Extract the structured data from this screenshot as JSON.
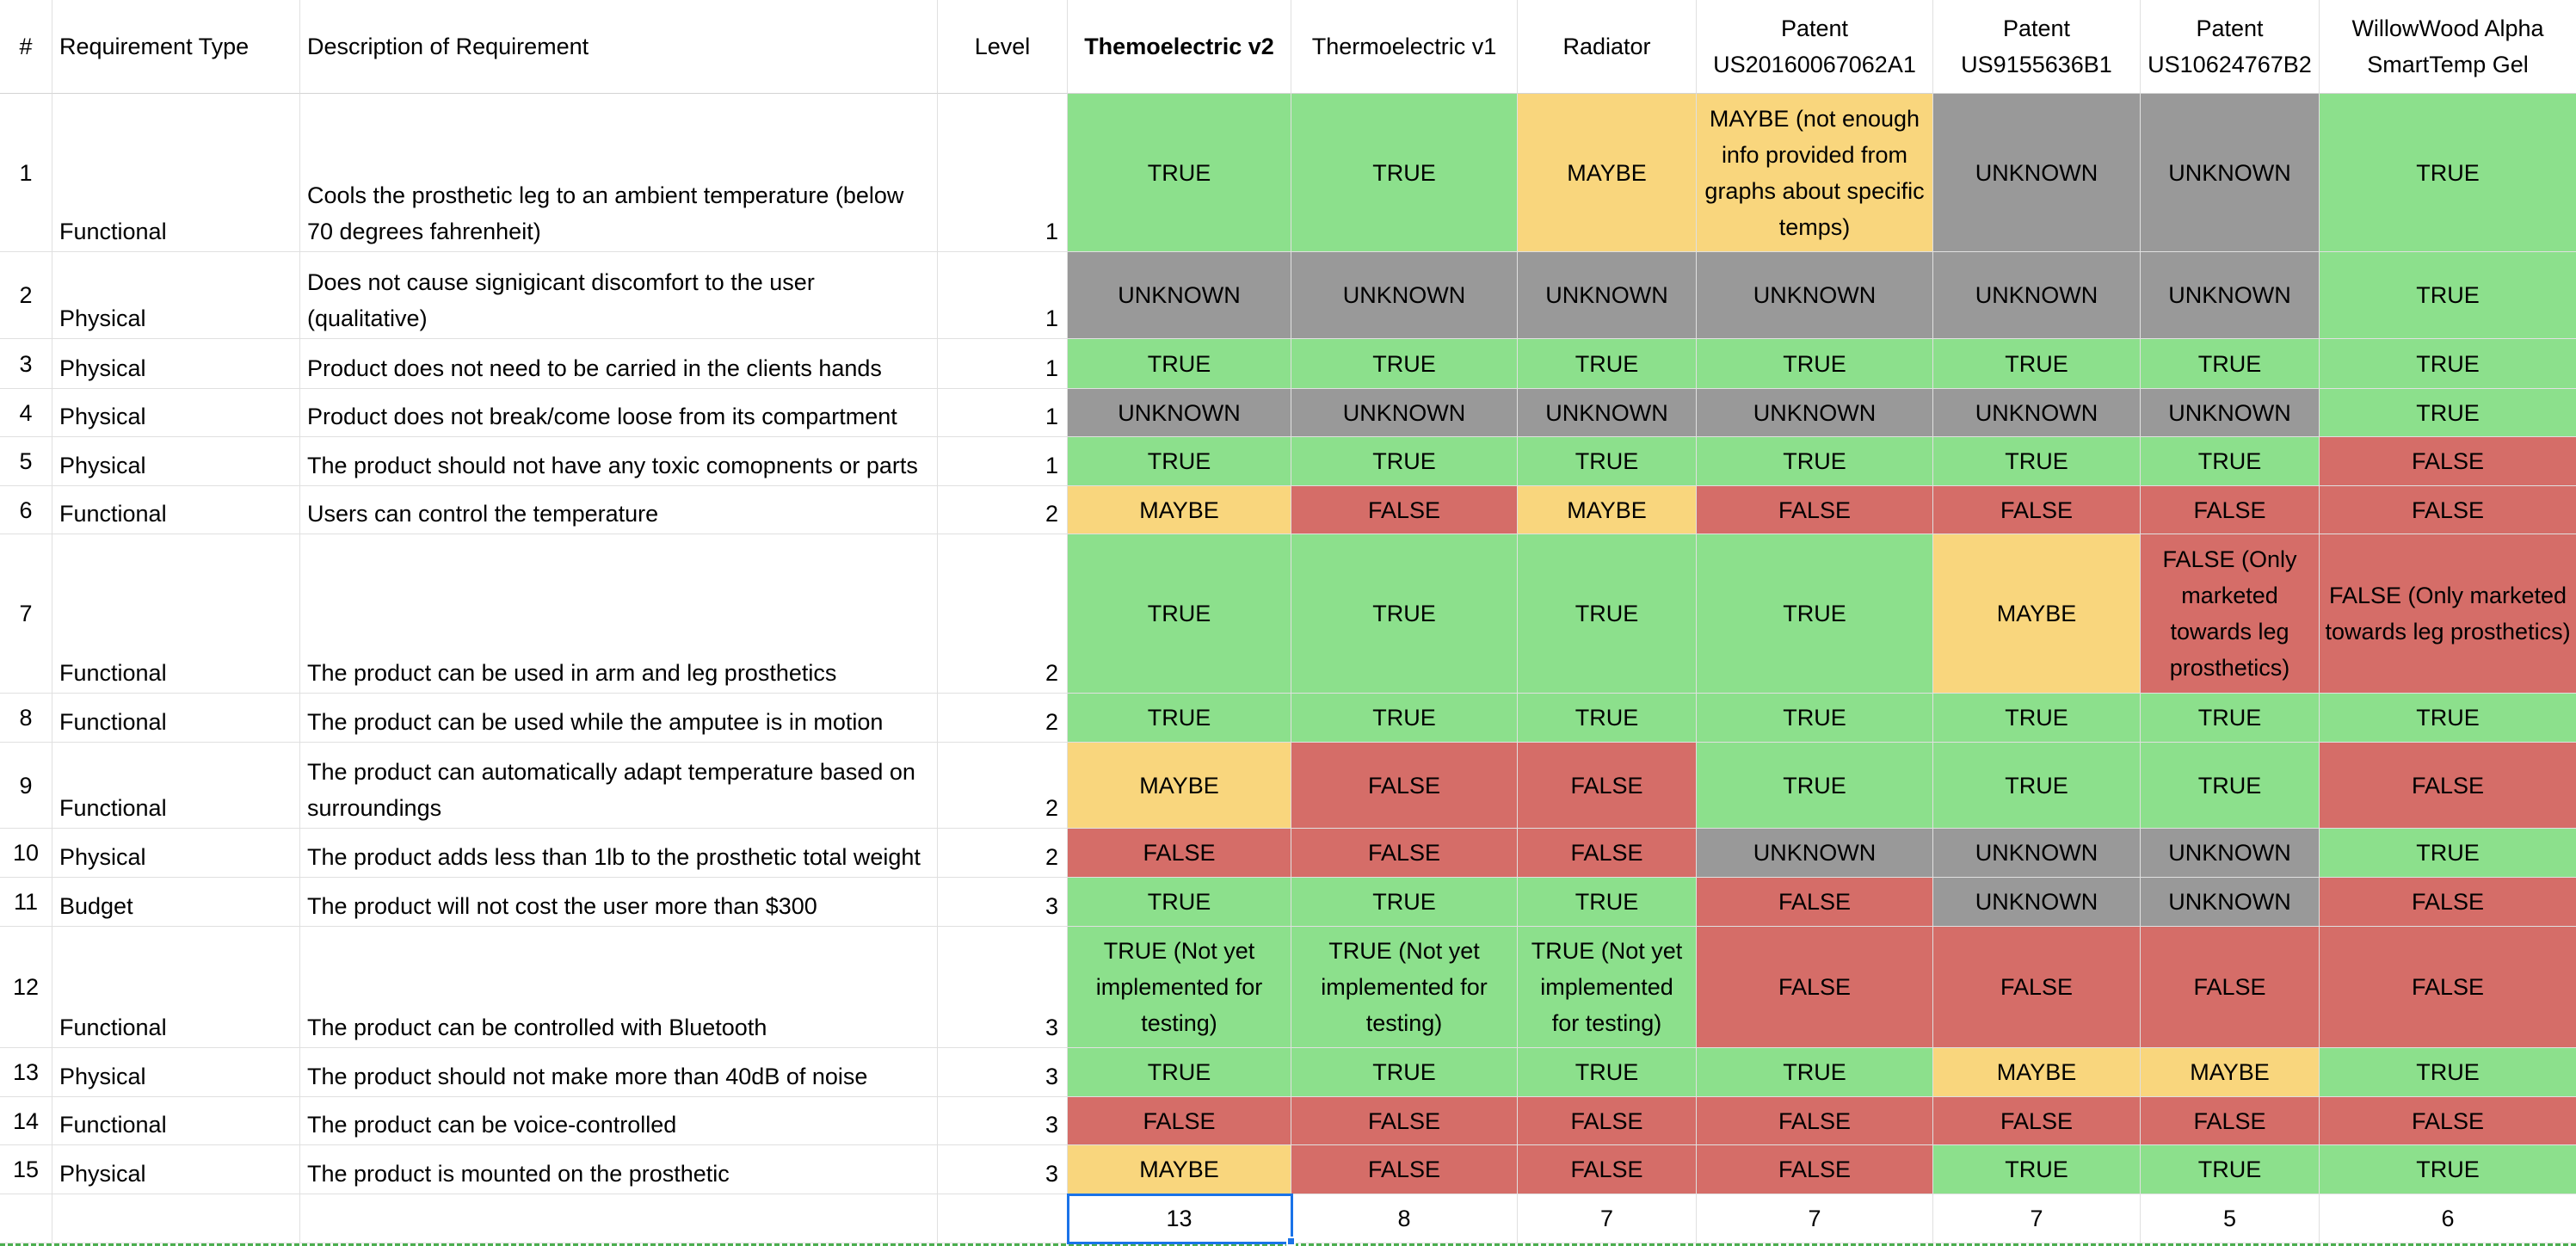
{
  "header": [
    "#",
    "Requirement Type",
    "Description of Requirement",
    "Level",
    "Themoelectric v2",
    "Thermoelectric v1",
    "Radiator",
    "Patent US20160067062A1",
    "Patent US9155636B1",
    "Patent US10624767B2",
    "WillowWood Alpha SmartTemp Gel"
  ],
  "rows": [
    {
      "number": 1,
      "type": "Functional",
      "description": "Cools the prosthetic leg to an ambient temperature (below 70 degrees fahrenheit)",
      "level": 1,
      "values": [
        "TRUE",
        "TRUE",
        "MAYBE",
        "MAYBE (not enough info provided from graphs about specific temps)",
        "UNKNOWN",
        "UNKNOWN",
        "TRUE"
      ]
    },
    {
      "number": 2,
      "type": "Physical",
      "description": "Does not cause signigicant discomfort to the user (qualitative)",
      "level": 1,
      "values": [
        "UNKNOWN",
        "UNKNOWN",
        "UNKNOWN",
        "UNKNOWN",
        "UNKNOWN",
        "UNKNOWN",
        "TRUE"
      ]
    },
    {
      "number": 3,
      "type": "Physical",
      "description": "Product does not need to be carried in the clients hands",
      "level": 1,
      "values": [
        "TRUE",
        "TRUE",
        "TRUE",
        "TRUE",
        "TRUE",
        "TRUE",
        "TRUE"
      ]
    },
    {
      "number": 4,
      "type": "Physical",
      "description": "Product does not break/come loose from its compartment",
      "level": 1,
      "values": [
        "UNKNOWN",
        "UNKNOWN",
        "UNKNOWN",
        "UNKNOWN",
        "UNKNOWN",
        "UNKNOWN",
        "TRUE"
      ]
    },
    {
      "number": 5,
      "type": "Physical",
      "description": "The product should not have any toxic comopnents or parts",
      "level": 1,
      "values": [
        "TRUE",
        "TRUE",
        "TRUE",
        "TRUE",
        "TRUE",
        "TRUE",
        "FALSE"
      ]
    },
    {
      "number": 6,
      "type": "Functional",
      "description": "Users can control the temperature",
      "level": 2,
      "values": [
        "MAYBE",
        "FALSE",
        "MAYBE",
        "FALSE",
        "FALSE",
        "FALSE",
        "FALSE"
      ]
    },
    {
      "number": 7,
      "type": "Functional",
      "description": "The product can be used in arm and leg prosthetics",
      "level": 2,
      "values": [
        "TRUE",
        "TRUE",
        "TRUE",
        "TRUE",
        "MAYBE",
        "FALSE (Only marketed towards leg prosthetics)",
        "FALSE (Only marketed towards leg prosthetics)"
      ]
    },
    {
      "number": 8,
      "type": "Functional",
      "description": "The product can be used while the amputee is in motion",
      "level": 2,
      "values": [
        "TRUE",
        "TRUE",
        "TRUE",
        "TRUE",
        "TRUE",
        "TRUE",
        "TRUE"
      ]
    },
    {
      "number": 9,
      "type": "Functional",
      "description": "The product can automatically adapt temperature based on surroundings",
      "level": 2,
      "values": [
        "MAYBE",
        "FALSE",
        "FALSE",
        "TRUE",
        "TRUE",
        "TRUE",
        "FALSE"
      ]
    },
    {
      "number": 10,
      "type": "Physical",
      "description": "The product adds less than 1lb to the prosthetic total weight",
      "level": 2,
      "values": [
        "FALSE",
        "FALSE",
        "FALSE",
        "UNKNOWN",
        "UNKNOWN",
        "UNKNOWN",
        "TRUE"
      ]
    },
    {
      "number": 11,
      "type": "Budget",
      "description": "The product will not cost the user more than $300",
      "level": 3,
      "values": [
        "TRUE",
        "TRUE",
        "TRUE",
        "FALSE",
        "UNKNOWN",
        "UNKNOWN",
        "FALSE"
      ]
    },
    {
      "number": 12,
      "type": "Functional",
      "description": "The product can be controlled with Bluetooth",
      "level": 3,
      "values": [
        "TRUE (Not yet implemented for testing)",
        "TRUE (Not yet implemented for testing)",
        "TRUE (Not yet implemented for testing)",
        "FALSE",
        "FALSE",
        "FALSE",
        "FALSE"
      ]
    },
    {
      "number": 13,
      "type": "Physical",
      "description": "The product should not make more than 40dB of noise",
      "level": 3,
      "values": [
        "TRUE",
        "TRUE",
        "TRUE",
        "TRUE",
        "MAYBE",
        "MAYBE",
        "TRUE"
      ]
    },
    {
      "number": 14,
      "type": "Functional",
      "description": "The product can be voice-controlled",
      "level": 3,
      "values": [
        "FALSE",
        "FALSE",
        "FALSE",
        "FALSE",
        "FALSE",
        "FALSE",
        "FALSE"
      ]
    },
    {
      "number": 15,
      "type": "Physical",
      "description": "The product is mounted on the prosthetic",
      "level": 3,
      "values": [
        "MAYBE",
        "FALSE",
        "FALSE",
        "FALSE",
        "TRUE",
        "TRUE",
        "TRUE"
      ]
    }
  ],
  "totals": [
    13,
    8,
    7,
    7,
    7,
    5,
    6
  ],
  "colors": {
    "status": {
      "TRUE": "#8ce08c",
      "FALSE": "#d56d68",
      "MAYBE": "#f9d67d",
      "UNKNOWN": "#999999"
    },
    "selection": "#1a73e8",
    "copy_border": "#4caf50"
  }
}
